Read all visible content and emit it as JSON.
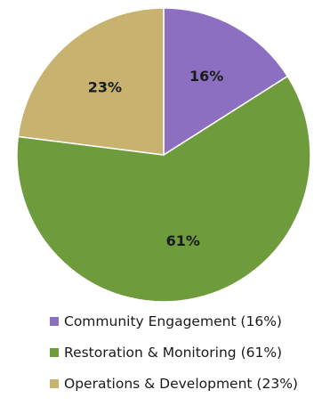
{
  "chart_data": {
    "type": "pie",
    "title": "",
    "legend_position": "bottom",
    "slices": [
      {
        "label": "Community Engagement (16%)",
        "value": 16,
        "display": "16%",
        "color": "#8c6fc1"
      },
      {
        "label": "Restoration & Monitoring (61%)",
        "value": 61,
        "display": "61%",
        "color": "#6e9c3c"
      },
      {
        "label": "Operations & Development (23%)",
        "value": 23,
        "display": "23%",
        "color": "#c8b26f"
      }
    ]
  }
}
